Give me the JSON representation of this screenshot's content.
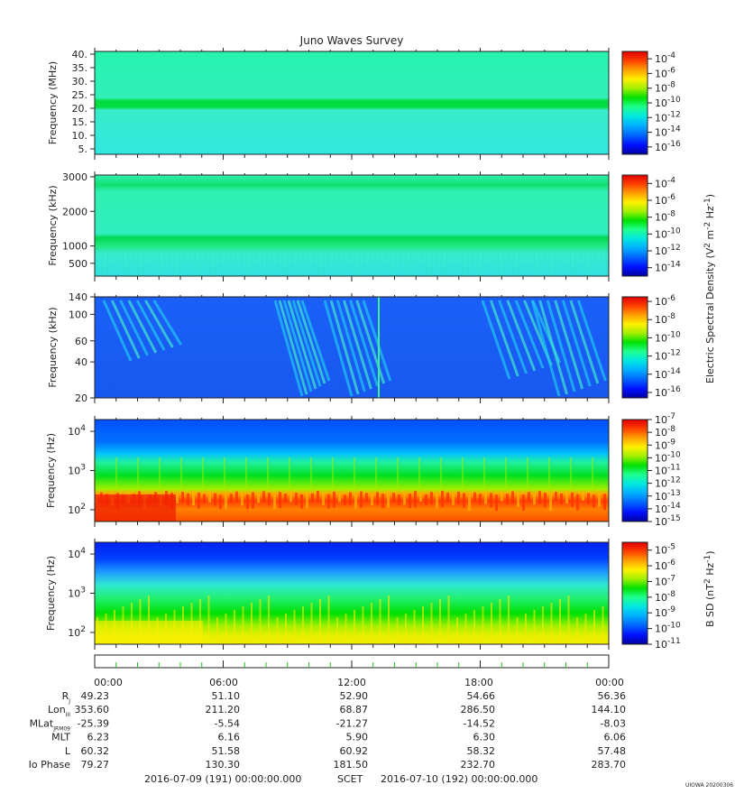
{
  "title": "Juno Waves Survey",
  "footer": {
    "start": "2016-07-09 (191) 00:00:00.000",
    "scet": "SCET",
    "end": "2016-07-10 (192) 00:00:00.000",
    "credit": "UIOWA 20200306"
  },
  "x_ticks": [
    "00:00",
    "06:00",
    "12:00",
    "18:00",
    "00:00"
  ],
  "ephemeris": [
    {
      "label": "R",
      "sub": "J",
      "values": [
        "49.23",
        "51.10",
        "52.90",
        "54.66",
        "56.36"
      ]
    },
    {
      "label": "Lon",
      "sub": "III",
      "values": [
        "353.60",
        "211.20",
        "68.87",
        "286.50",
        "144.10"
      ]
    },
    {
      "label": "MLat",
      "sub": "JRM09",
      "values": [
        "-25.39",
        "-5.54",
        "-21.27",
        "-14.52",
        "-8.03"
      ]
    },
    {
      "label": "MLT",
      "sub": "",
      "values": [
        "6.23",
        "6.16",
        "5.90",
        "6.30",
        "6.06"
      ]
    },
    {
      "label": "L",
      "sub": "",
      "values": [
        "60.32",
        "51.58",
        "60.92",
        "58.32",
        "57.48"
      ]
    },
    {
      "label": "Io Phase",
      "sub": "",
      "values": [
        "79.27",
        "130.30",
        "181.50",
        "232.70",
        "283.70"
      ]
    }
  ],
  "colorbar_labels": {
    "e": {
      "base": "Electric Spectral Density (V",
      "mid": " m",
      "end": " Hz",
      "close": ")",
      "sup1": "2",
      "sup2": "-2",
      "sup3": "-1"
    },
    "b": {
      "base": "B SD (nT",
      "mid": " Hz",
      "close": ")",
      "sup1": "2",
      "sup2": "-1"
    }
  },
  "colors": {
    "palette": [
      "#0000a0",
      "#0010ff",
      "#0060ff",
      "#00b0ff",
      "#00e8e0",
      "#20ff90",
      "#00e000",
      "#a0f000",
      "#fff000",
      "#ffa000",
      "#ff4000",
      "#e00000"
    ]
  },
  "chart_data": [
    {
      "type": "heatmap",
      "name": "",
      "ylabel": "Frequency (MHz)",
      "yscale": "linear",
      "ylim": [
        3,
        41
      ],
      "yticks": [
        5,
        10,
        15,
        20,
        25,
        30,
        35,
        40
      ],
      "ytick_labels": [
        "5.",
        "10.",
        "15.",
        "20.",
        "25.",
        "30.",
        "35.",
        "40."
      ],
      "colorbar_exponents": [
        -4,
        -6,
        -8,
        -10,
        -12,
        -14,
        -16
      ],
      "colorbar_range": [
        -17,
        -3
      ]
    },
    {
      "type": "heatmap",
      "name": "",
      "ylabel": "Frequency (kHz)",
      "yscale": "linear",
      "ylim": [
        130,
        3050
      ],
      "yticks": [
        500,
        1000,
        2000,
        3000
      ],
      "ytick_labels": [
        "500",
        "1000",
        "2000",
        "3000"
      ],
      "colorbar_exponents": [
        -4,
        -6,
        -8,
        -10,
        -12,
        -14
      ],
      "colorbar_range": [
        -15,
        -3
      ]
    },
    {
      "type": "heatmap",
      "name": "",
      "ylabel": "Frequency (kHz)",
      "yscale": "log",
      "ylim": [
        20,
        140
      ],
      "yticks": [
        20,
        40,
        60,
        100,
        140
      ],
      "ytick_labels": [
        "20",
        "40",
        "60",
        "100",
        "140"
      ],
      "colorbar_exponents": [
        -6,
        -8,
        -10,
        -12,
        -14,
        -16
      ],
      "colorbar_range": [
        -16.6,
        -5.5
      ]
    },
    {
      "type": "heatmap",
      "name": "",
      "ylabel": "Frequency (Hz)",
      "yscale": "log",
      "ylim": [
        50,
        20000
      ],
      "yticks": [
        100,
        1000,
        10000
      ],
      "colorbar_exponents": [
        -7,
        -8,
        -9,
        -10,
        -11,
        -12,
        -13,
        -14,
        -15
      ],
      "colorbar_range": [
        -15,
        -7
      ]
    },
    {
      "type": "heatmap",
      "name": "",
      "ylabel": "Frequency (Hz)",
      "yscale": "log",
      "ylim": [
        50,
        20000
      ],
      "yticks": [
        100,
        1000,
        10000
      ],
      "colorbar_exponents": [
        -5,
        -6,
        -7,
        -8,
        -9,
        -10,
        -11
      ],
      "colorbar_range": [
        -11,
        -4.5
      ]
    }
  ]
}
